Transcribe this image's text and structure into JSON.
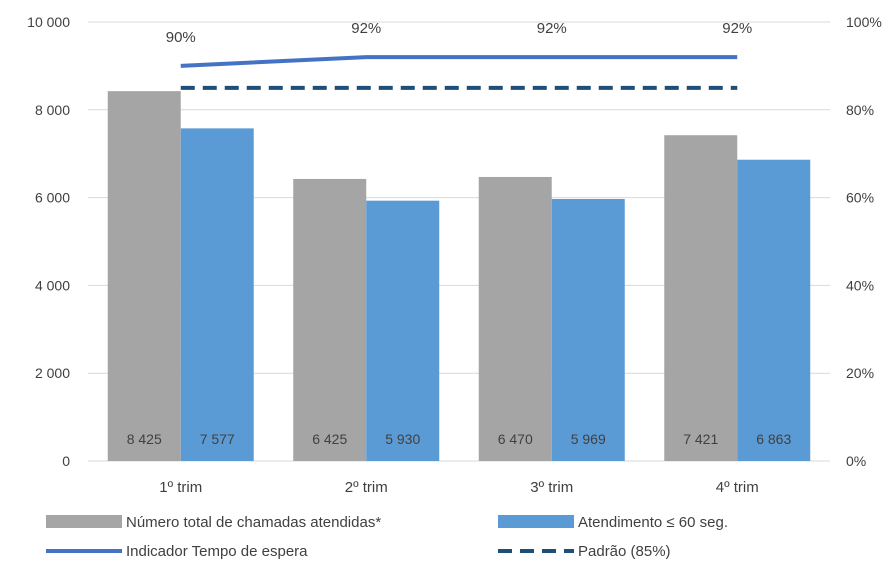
{
  "chart_data": {
    "type": "bar",
    "categories": [
      "1º trim",
      "2º trim",
      "3º trim",
      "4º trim"
    ],
    "series": [
      {
        "name": "Número total de chamadas atendidas*",
        "type": "bar",
        "axis": "left",
        "color": "#a5a5a5",
        "values": [
          8425,
          6425,
          6470,
          7421
        ],
        "labels": [
          "8 425",
          "6 425",
          "6 470",
          "7 421"
        ]
      },
      {
        "name": "Atendimento ≤ 60 seg.",
        "type": "bar",
        "axis": "left",
        "color": "#5b9bd5",
        "values": [
          7577,
          5930,
          5969,
          6863
        ],
        "labels": [
          "7 577",
          "5 930",
          "5 969",
          "6 863"
        ]
      },
      {
        "name": "Indicador Tempo de espera",
        "type": "line",
        "axis": "right",
        "color": "#4472c4",
        "values": [
          0.9,
          0.92,
          0.92,
          0.92
        ],
        "labels": [
          "90%",
          "92%",
          "92%",
          "92%"
        ]
      },
      {
        "name": "Padrão (85%)",
        "type": "line",
        "axis": "right",
        "style": "dashed",
        "color": "#1f4e79",
        "values": [
          0.85,
          0.85,
          0.85,
          0.85
        ]
      }
    ],
    "y_left": {
      "min": 0,
      "max": 10000,
      "ticks": [
        0,
        2000,
        4000,
        6000,
        8000,
        10000
      ],
      "tick_labels": [
        "0",
        "2 000",
        "4 000",
        "6 000",
        "8 000",
        "10 000"
      ]
    },
    "y_right": {
      "min": 0,
      "max": 1,
      "ticks": [
        0,
        0.2,
        0.4,
        0.6,
        0.8,
        1.0
      ],
      "tick_labels": [
        "0%",
        "20%",
        "40%",
        "60%",
        "80%",
        "100%"
      ]
    },
    "grid": true,
    "legend_position": "bottom"
  }
}
